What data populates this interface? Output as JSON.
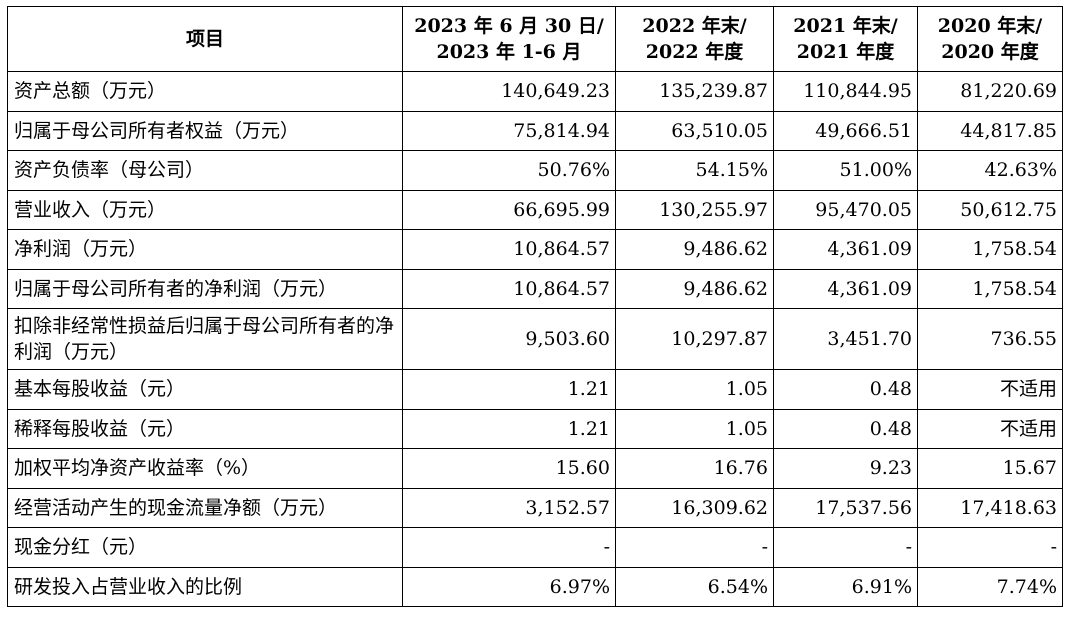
{
  "table": {
    "headers": [
      [
        "项目"
      ],
      [
        "2023 年 6 月 30 日/",
        "2023 年 1-6 月"
      ],
      [
        "2022 年末/",
        "2022 年度"
      ],
      [
        "2021 年末/",
        "2021 年度"
      ],
      [
        "2020 年末/",
        "2020 年度"
      ]
    ],
    "rows": [
      {
        "label": "资产总额（万元）",
        "values": [
          "140,649.23",
          "135,239.87",
          "110,844.95",
          "81,220.69"
        ]
      },
      {
        "label": "归属于母公司所有者权益（万元）",
        "values": [
          "75,814.94",
          "63,510.05",
          "49,666.51",
          "44,817.85"
        ]
      },
      {
        "label": "资产负债率（母公司）",
        "values": [
          "50.76%",
          "54.15%",
          "51.00%",
          "42.63%"
        ]
      },
      {
        "label": "营业收入（万元）",
        "values": [
          "66,695.99",
          "130,255.97",
          "95,470.05",
          "50,612.75"
        ]
      },
      {
        "label": "净利润（万元）",
        "values": [
          "10,864.57",
          "9,486.62",
          "4,361.09",
          "1,758.54"
        ]
      },
      {
        "label": "归属于母公司所有者的净利润（万元）",
        "values": [
          "10,864.57",
          "9,486.62",
          "4,361.09",
          "1,758.54"
        ]
      },
      {
        "label": "扣除非经常性损益后归属于母公司所有者的净利润（万元）",
        "values": [
          "9,503.60",
          "10,297.87",
          "3,451.70",
          "736.55"
        ]
      },
      {
        "label": "基本每股收益（元）",
        "values": [
          "1.21",
          "1.05",
          "0.48",
          "不适用"
        ]
      },
      {
        "label": "稀释每股收益（元）",
        "values": [
          "1.21",
          "1.05",
          "0.48",
          "不适用"
        ]
      },
      {
        "label": "加权平均净资产收益率（%）",
        "values": [
          "15.60",
          "16.76",
          "9.23",
          "15.67"
        ]
      },
      {
        "label": "经营活动产生的现金流量净额（万元）",
        "values": [
          "3,152.57",
          "16,309.62",
          "17,537.56",
          "17,418.63"
        ]
      },
      {
        "label": "现金分红（元）",
        "values": [
          "-",
          "-",
          "-",
          "-"
        ]
      },
      {
        "label": "研发投入占营业收入的比例",
        "values": [
          "6.97%",
          "6.54%",
          "6.91%",
          "7.74%"
        ]
      }
    ]
  }
}
